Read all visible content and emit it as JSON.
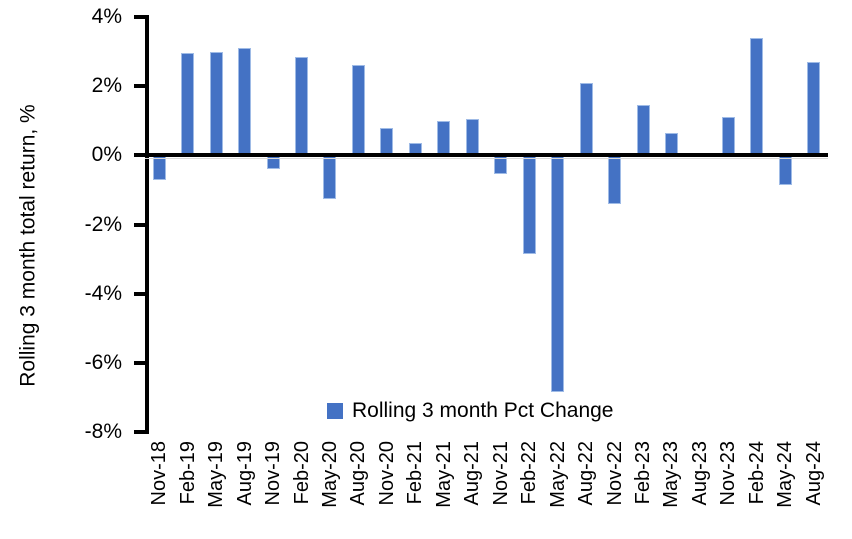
{
  "chart_data": {
    "type": "bar",
    "title": "",
    "ylabel": "Rolling 3 month total return, %",
    "xlabel": "",
    "categories": [
      "Nov-18",
      "Feb-19",
      "May-19",
      "Aug-19",
      "Nov-19",
      "Feb-20",
      "May-20",
      "Aug-20",
      "Nov-20",
      "Feb-21",
      "May-21",
      "Aug-21",
      "Nov-21",
      "Feb-22",
      "May-22",
      "Aug-22",
      "Nov-22",
      "Feb-23",
      "May-23",
      "Aug-23",
      "Nov-23",
      "Feb-24",
      "May-24",
      "Aug-24"
    ],
    "values": [
      -0.7,
      2.95,
      3.0,
      3.1,
      -0.4,
      2.85,
      -1.25,
      2.6,
      0.8,
      0.35,
      1.0,
      1.05,
      -0.55,
      -2.85,
      -6.85,
      2.1,
      -1.4,
      1.45,
      0.65,
      0.0,
      1.1,
      3.4,
      -0.85,
      2.7
    ],
    "ylim": [
      -8,
      4
    ],
    "ytick_step": 2,
    "ytick_labels": [
      "4%",
      "2%",
      "0%",
      "-2%",
      "-4%",
      "-6%",
      "-8%"
    ],
    "ytick_values": [
      4,
      2,
      0,
      -2,
      -4,
      -6,
      -8
    ],
    "grid": false,
    "legend": {
      "label": "Rolling 3 month Pct Change",
      "position": "bottom-center-inside"
    },
    "colors": {
      "bar_fill": "#4472C4",
      "bar_border": "#9FBBE6",
      "axis": "#000000",
      "background": "#ffffff"
    }
  }
}
